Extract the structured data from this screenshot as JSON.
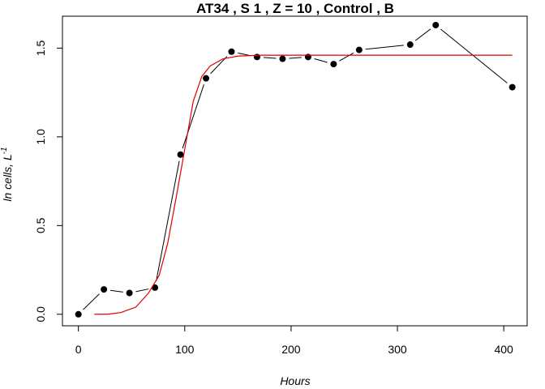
{
  "chart_data": {
    "type": "line",
    "title": "AT34 , S 1 , Z = 10 , Control , B",
    "xlabel": "Hours",
    "ylabel": "ln cells, L",
    "ylabel_superscript": "-1",
    "xlim": [
      -15,
      422
    ],
    "ylim": [
      -0.065,
      1.68
    ],
    "xticks": [
      0,
      100,
      200,
      300,
      400
    ],
    "yticks": [
      0.0,
      0.5,
      1.0,
      1.5
    ],
    "xtick_labels": [
      "0",
      "100",
      "200",
      "300",
      "400"
    ],
    "ytick_labels": [
      "0.0",
      "0.5",
      "1.0",
      "1.5"
    ],
    "grid": false,
    "series": [
      {
        "style": "points-and-lines",
        "color": "#000000",
        "x": [
          0,
          24,
          48,
          72,
          96,
          120,
          144,
          168,
          192,
          216,
          240,
          264,
          312,
          336,
          408
        ],
        "y": [
          0.0,
          0.14,
          0.12,
          0.15,
          0.9,
          1.33,
          1.48,
          1.45,
          1.44,
          1.45,
          1.41,
          1.49,
          1.52,
          1.63,
          1.28
        ]
      },
      {
        "style": "line",
        "color": "#e00000",
        "x": [
          15,
          28,
          40,
          54,
          66,
          76,
          84,
          92,
          100,
          108,
          116,
          124,
          136,
          150,
          170,
          200,
          260,
          320,
          380,
          408
        ],
        "y": [
          0.0,
          0.0,
          0.01,
          0.04,
          0.12,
          0.22,
          0.4,
          0.66,
          0.93,
          1.2,
          1.34,
          1.4,
          1.44,
          1.455,
          1.46,
          1.46,
          1.46,
          1.46,
          1.46,
          1.46
        ]
      }
    ]
  }
}
